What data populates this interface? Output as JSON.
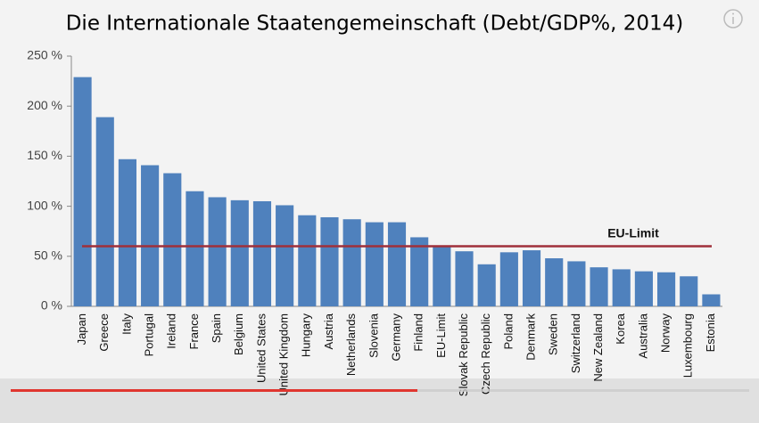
{
  "chart_data": {
    "type": "bar",
    "title": "Die Internationale Staatengemeinschaft (Debt/GDP%, 2014)",
    "categories": [
      "Japan",
      "Greece",
      "Italy",
      "Portugal",
      "Ireland",
      "France",
      "Spain",
      "Belgium",
      "United States",
      "United Kingdom",
      "Hungary",
      "Austria",
      "Netherlands",
      "Slovenia",
      "Germany",
      "Finland",
      "EU-Limit",
      "Slovak Republic",
      "Czech Republic",
      "Poland",
      "Denmark",
      "Sweden",
      "Switzerland",
      "New Zealand",
      "Korea",
      "Australia",
      "Norway",
      "Luxembourg",
      "Estonia"
    ],
    "values": [
      229,
      189,
      147,
      141,
      133,
      115,
      109,
      106,
      105,
      101,
      91,
      89,
      87,
      84,
      84,
      69,
      60,
      55,
      42,
      54,
      56,
      48,
      45,
      39,
      37,
      35,
      34,
      30,
      12
    ],
    "color": "#4f81bd",
    "ylim": [
      0,
      250
    ],
    "yticks": [
      {
        "value": 0,
        "label": "0 %"
      },
      {
        "value": 50,
        "label": "50 %"
      },
      {
        "value": 100,
        "label": "100 %"
      },
      {
        "value": 150,
        "label": "150 %"
      },
      {
        "value": 200,
        "label": "200 %"
      },
      {
        "value": 250,
        "label": "250 %"
      }
    ],
    "grid": false,
    "reference_line": {
      "label": "EU-Limit",
      "value": 60,
      "color": "#a0303a"
    }
  }
}
